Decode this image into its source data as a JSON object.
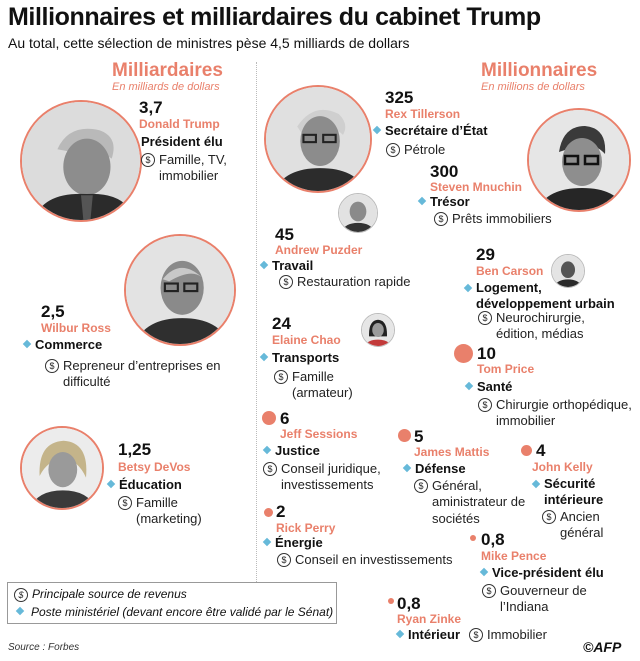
{
  "title": "Millionnaires et milliardaires du cabinet Trump",
  "subtitle": "Au total, cette sélection de ministres pèse 4,5 milliards de dollars",
  "colors": {
    "accent": "#e9806b",
    "diamond": "#66b9d9",
    "text": "#111111"
  },
  "icons": {
    "post": "diamond-icon",
    "source": "dollar-circle-icon"
  },
  "chart_data": {
    "type": "bubble-infographic",
    "title": "Millionnaires et milliardaires du cabinet Trump",
    "subtitle": "Au total, cette sélection de ministres pèse 4,5 milliards de dollars",
    "groups": [
      {
        "label": "Milliardaires",
        "unit": "En milliards de dollars",
        "members": [
          {
            "value": 3.7,
            "value_label": "3,7",
            "name": "Donald Trump",
            "post": "Président élu",
            "source": "Famille, TV, immobilier"
          },
          {
            "value": 2.5,
            "value_label": "2,5",
            "name": "Wilbur Ross",
            "post": "Commerce",
            "source": "Repreneur d’entreprises en difficulté"
          },
          {
            "value": 1.25,
            "value_label": "1,25",
            "name": "Betsy DeVos",
            "post": "Éducation",
            "source": "Famille (marketing)"
          }
        ]
      },
      {
        "label": "Millionnaires",
        "unit": "En millions de dollars",
        "members": [
          {
            "value": 325,
            "value_label": "325",
            "name": "Rex Tillerson",
            "post": "Secrétaire d’État",
            "source": "Pétrole"
          },
          {
            "value": 300,
            "value_label": "300",
            "name": "Steven Mnuchin",
            "post": "Trésor",
            "source": "Prêts immobiliers"
          },
          {
            "value": 45,
            "value_label": "45",
            "name": "Andrew Puzder",
            "post": "Travail",
            "source": "Restauration rapide"
          },
          {
            "value": 29,
            "value_label": "29",
            "name": "Ben Carson",
            "post": "Logement, développement urbain",
            "source": "Neurochirurgie, édition, médias"
          },
          {
            "value": 24,
            "value_label": "24",
            "name": "Elaine Chao",
            "post": "Transports",
            "source": "Famille (armateur)"
          },
          {
            "value": 10,
            "value_label": "10",
            "name": "Tom Price",
            "post": "Santé",
            "source": "Chirurgie orthopédique, immobilier"
          },
          {
            "value": 6,
            "value_label": "6",
            "name": "Jeff Sessions",
            "post": "Justice",
            "source": "Conseil juridique, investissements"
          },
          {
            "value": 5,
            "value_label": "5",
            "name": "James Mattis",
            "post": "Défense",
            "source": "Général, aministrateur de sociétés"
          },
          {
            "value": 4,
            "value_label": "4",
            "name": "John Kelly",
            "post": "Sécurité intérieure",
            "source": "Ancien général"
          },
          {
            "value": 2,
            "value_label": "2",
            "name": "Rick Perry",
            "post": "Énergie",
            "source": "Conseil en investissements"
          },
          {
            "value": 0.8,
            "value_label": "0,8",
            "name": "Mike Pence",
            "post": "Vice-président élu",
            "source": "Gouverneur de l’Indiana"
          },
          {
            "value": 0.8,
            "value_label": "0,8",
            "name": "Ryan Zinke",
            "post": "Intérieur",
            "source": "Immobilier"
          }
        ]
      }
    ],
    "legend": [
      {
        "icon": "dollar-circle-icon",
        "label": "Principale source de revenus"
      },
      {
        "icon": "diamond-icon",
        "label": "Poste ministériel (devant encore être validé par le Sénat)"
      }
    ],
    "source": "Source : Forbes"
  },
  "credit": "©AFP"
}
